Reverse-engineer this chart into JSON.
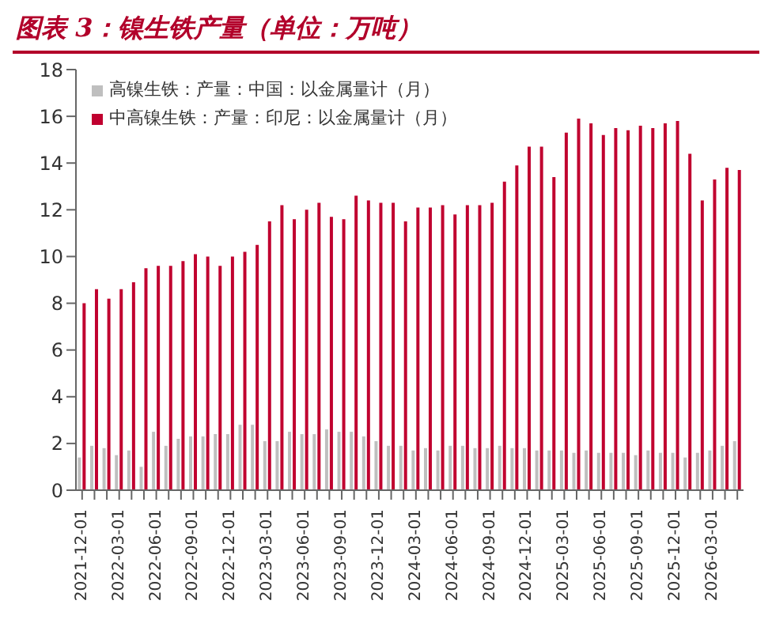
{
  "chart_data": {
    "type": "bar",
    "title": "图表 3：镍生铁产量（单位：万吨）",
    "categories": [
      "2021-12-01",
      null,
      null,
      "2022-03-01",
      null,
      null,
      "2022-06-01",
      null,
      null,
      "2022-09-01",
      null,
      null,
      "2022-12-01",
      null,
      null,
      "2023-03-01",
      null,
      null,
      "2023-06-01",
      null,
      null,
      "2023-09-01",
      null,
      null,
      "2023-12-01",
      null,
      null,
      "2024-03-01",
      null,
      null,
      "2024-06-01",
      null,
      null,
      "2024-09-01",
      null,
      null,
      "2024-12-01",
      null,
      null,
      "2025-03-01",
      null,
      null,
      "2025-06-01",
      null,
      null,
      "2025-09-01",
      null,
      null,
      "2025-12-01",
      null,
      null,
      "2026-03-01",
      null,
      null
    ],
    "series": [
      {
        "name": "高镍生铁：产量：中国：以金属量计（月）",
        "color": "#bfbfbf",
        "values": [
          1.4,
          1.9,
          1.8,
          1.5,
          1.7,
          1.0,
          2.5,
          1.9,
          2.2,
          2.3,
          2.3,
          2.4,
          2.4,
          2.8,
          2.8,
          2.1,
          2.1,
          2.5,
          2.4,
          2.4,
          2.6,
          2.5,
          2.5,
          2.3,
          2.1,
          1.9,
          1.9,
          1.7,
          1.8,
          1.7,
          1.9,
          1.9,
          1.8,
          1.8,
          1.9,
          1.8,
          1.8,
          1.7,
          1.7,
          1.7,
          1.6,
          1.7,
          1.6,
          1.6,
          1.6,
          1.5,
          1.7,
          1.6,
          1.6,
          1.4,
          1.6,
          1.7,
          1.9,
          2.1
        ]
      },
      {
        "name": "中高镍生铁：产量：印尼：以金属量计（月）",
        "color": "#c0002f",
        "values": [
          8.0,
          8.6,
          8.2,
          8.6,
          8.9,
          9.5,
          9.6,
          9.6,
          9.8,
          10.1,
          10.0,
          9.6,
          10.0,
          10.2,
          10.5,
          11.5,
          12.2,
          11.6,
          12.0,
          12.3,
          11.7,
          11.6,
          12.6,
          12.4,
          12.3,
          12.3,
          11.5,
          12.1,
          12.1,
          12.2,
          11.8,
          12.2,
          12.2,
          12.3,
          13.2,
          13.9,
          14.7,
          14.7,
          13.4,
          15.3,
          15.9,
          15.7,
          15.2,
          15.5,
          15.4,
          15.6,
          15.5,
          15.7,
          15.8,
          14.4,
          12.4,
          13.3,
          13.8,
          13.7
        ]
      }
    ],
    "ylim": [
      0,
      18
    ],
    "yticks": [
      0,
      2,
      4,
      6,
      8,
      10,
      12,
      14,
      16,
      18
    ],
    "legend": "top left"
  }
}
